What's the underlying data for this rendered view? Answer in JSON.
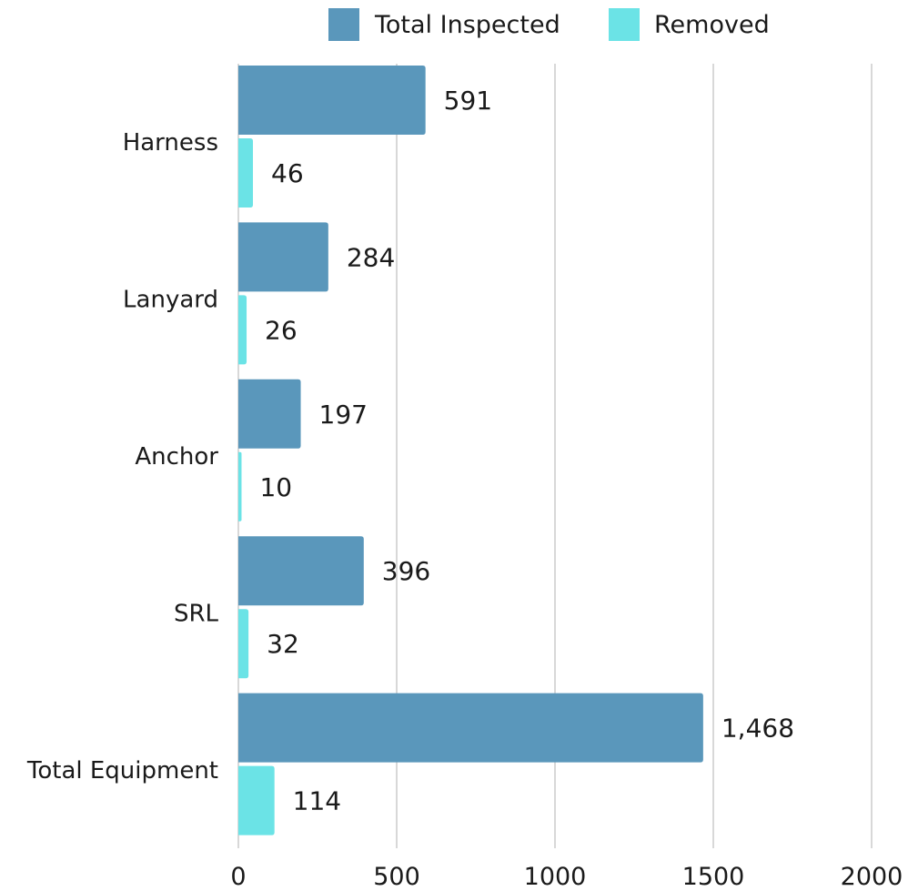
{
  "chart_data": {
    "type": "bar",
    "orientation": "horizontal",
    "categories": [
      "Harness",
      "Lanyard",
      "Anchor",
      "SRL",
      "Total Equipment"
    ],
    "series": [
      {
        "name": "Total Inspected",
        "color": "#5a97bb",
        "values": [
          591,
          284,
          197,
          396,
          1468
        ],
        "labels": [
          "591",
          "284",
          "197",
          "396",
          "1,468"
        ]
      },
      {
        "name": "Removed",
        "color": "#6be3e6",
        "values": [
          46,
          26,
          10,
          32,
          114
        ],
        "labels": [
          "46",
          "26",
          "10",
          "32",
          "114"
        ]
      }
    ],
    "xlim": [
      0,
      2000
    ],
    "xticks": [
      0,
      500,
      1000,
      1500,
      2000
    ],
    "xtick_labels": [
      "0",
      "500",
      "1000",
      "1500",
      "2000"
    ],
    "grid": "vertical",
    "legend": "top-center",
    "gridline_color": "#cccccc"
  }
}
